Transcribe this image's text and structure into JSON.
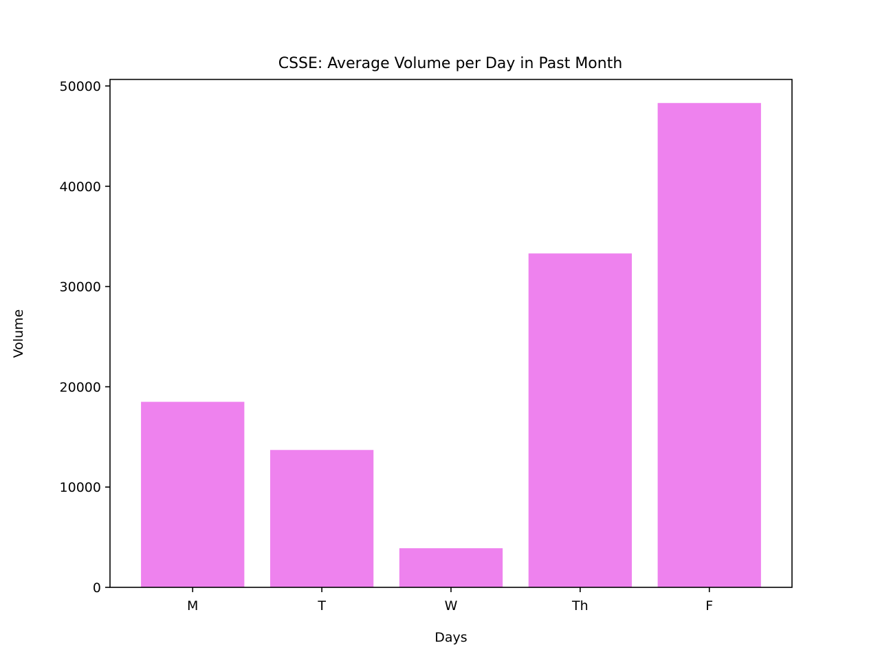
{
  "chart_data": {
    "type": "bar",
    "title": "CSSE: Average Volume per Day in Past Month",
    "xlabel": "Days",
    "ylabel": "Volume",
    "categories": [
      "M",
      "T",
      "W",
      "Th",
      "F"
    ],
    "values": [
      18500,
      13700,
      3900,
      33300,
      48300
    ],
    "ylim": [
      0,
      50650
    ],
    "yticks": [
      0,
      10000,
      20000,
      30000,
      40000,
      50000
    ],
    "grid": false,
    "legend": "none",
    "bar_color": "#ee82ee"
  }
}
